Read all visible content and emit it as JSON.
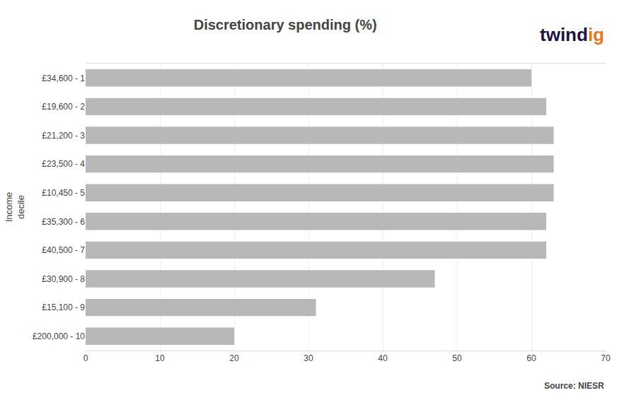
{
  "chart_data": {
    "type": "bar",
    "orientation": "horizontal",
    "title": "Discretionary spending (%)",
    "ylabel": "Income\ndecile",
    "categories": [
      "£34,600 - 1",
      "£19,600 - 2",
      "£21,200 - 3",
      "£23,500 - 4",
      "£10,450 - 5",
      "£35,300 - 6",
      "£40,500 - 7",
      "£30,900 - 8",
      "£15,100 - 9",
      "£200,000 - 10"
    ],
    "values": [
      60,
      62,
      63,
      63,
      63,
      62,
      62,
      47,
      31,
      20
    ],
    "color": "#b8b8b8",
    "xlim": [
      0,
      70
    ],
    "xticks": [
      0,
      10,
      20,
      30,
      40,
      50,
      60,
      70
    ],
    "grid": true,
    "annotations": [
      {
        "text": "Source: NIESR"
      },
      {
        "text": "twind",
        "color": "#1f1446"
      },
      {
        "text": "ig",
        "color": "#e87722"
      }
    ]
  }
}
